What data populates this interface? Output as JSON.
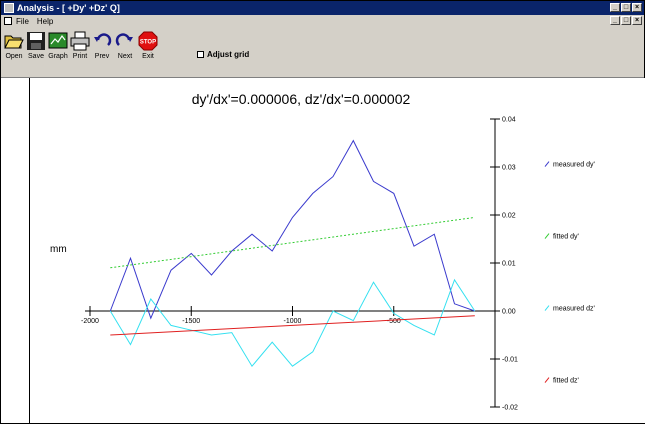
{
  "window": {
    "title": "Analysis - [ +Dy' +Dz' Q]"
  },
  "menu": {
    "items": [
      "File",
      "Help"
    ]
  },
  "toolbar": {
    "buttons": [
      {
        "label": "Open",
        "icon": "folder-open-icon"
      },
      {
        "label": "Save",
        "icon": "floppy-disk-icon"
      },
      {
        "label": "Graph",
        "icon": "graph-icon"
      },
      {
        "label": "Print",
        "icon": "printer-icon"
      },
      {
        "label": "Prev",
        "icon": "undo-arrow-icon"
      },
      {
        "label": "Next",
        "icon": "redo-arrow-icon"
      },
      {
        "label": "Exit",
        "icon": "stop-sign-icon"
      }
    ],
    "adjust_grid_label": "Adjust grid",
    "adjust_grid_checked": false
  },
  "chart_data": {
    "type": "line",
    "title": "dy'/dx'=0.000006,  dz'/dx'=0.000002",
    "ylabel": "mm",
    "xlim": [
      -2000,
      0
    ],
    "ylim": [
      -0.02,
      0.04
    ],
    "x_ticks": [
      "-2000",
      "-1500",
      "-1000",
      "-500"
    ],
    "x_tick_values": [
      -2000,
      -1500,
      -1000,
      -500
    ],
    "y_ticks": [
      "0.04",
      "0.03",
      "0.02",
      "0.01",
      "0.00",
      "-0.01",
      "-0.02"
    ],
    "y_tick_values": [
      0.04,
      0.03,
      0.02,
      0.01,
      0.0,
      -0.01,
      -0.02
    ],
    "series": [
      {
        "name": "measured dy'",
        "color": "#3a3acd",
        "style": "solid",
        "x": [
          -1900,
          -1800,
          -1700,
          -1600,
          -1500,
          -1400,
          -1300,
          -1200,
          -1100,
          -1000,
          -900,
          -800,
          -700,
          -600,
          -500,
          -400,
          -300,
          -200,
          -100
        ],
        "y": [
          0.0,
          0.011,
          -0.0015,
          0.0085,
          0.012,
          0.0075,
          0.0125,
          0.016,
          0.0125,
          0.0195,
          0.0245,
          0.028,
          0.0355,
          0.027,
          0.0245,
          0.0135,
          0.016,
          0.0015,
          0.0
        ]
      },
      {
        "name": "fitted dy'",
        "color": "#33cc33",
        "style": "dashed",
        "x": [
          -1900,
          -100
        ],
        "y": [
          0.009,
          0.0195
        ]
      },
      {
        "name": "measured dz'",
        "color": "#33e0f0",
        "style": "solid",
        "x": [
          -1900,
          -1800,
          -1700,
          -1600,
          -1500,
          -1400,
          -1300,
          -1200,
          -1100,
          -1000,
          -900,
          -800,
          -700,
          -600,
          -500,
          -400,
          -300,
          -200,
          -100
        ],
        "y": [
          0.0,
          -0.007,
          0.0025,
          -0.003,
          -0.004,
          -0.005,
          -0.0045,
          -0.0115,
          -0.0065,
          -0.0115,
          -0.0085,
          -0.0,
          -0.002,
          0.006,
          -0.0005,
          -0.003,
          -0.005,
          0.0065,
          0.0
        ]
      },
      {
        "name": "fitted dz'",
        "color": "#e02020",
        "style": "solid",
        "x": [
          -1900,
          -100
        ],
        "y": [
          -0.005,
          -0.001
        ]
      }
    ],
    "legend": [
      "measured dy'",
      "fitted dy'",
      "measured dz'",
      "fitted dz'"
    ],
    "legend_position": "right",
    "grid": false
  }
}
